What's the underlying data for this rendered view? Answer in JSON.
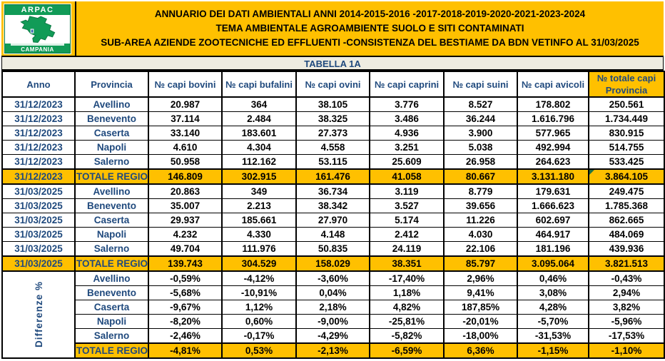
{
  "logo": {
    "org": "ARPAC",
    "region": "CAMPANIA"
  },
  "header": {
    "line1": "ANNUARIO DEI DATI AMBIENTALI ANNI 2014-2015-2016 -2017-2018-2019-2020-2021-2023-2024",
    "line2": "TEMA AMBIENTALE AGROAMBIENTE SUOLO E SITI CONTAMINATI",
    "line3": "SUB-AREA AZIENDE ZOOTECNICHE ED EFFLUENTI -CONSISTENZA DEL BESTIAME  DA BDN VETINFO AL 31/03/2025"
  },
  "table": {
    "caption": "TABELLA 1A",
    "columns": [
      "Anno",
      "Provincia",
      "№ capi bovini",
      "№ capi bufalini",
      "№ capi ovini",
      "№ capi caprini",
      "№ capi suini",
      "№ capi avicoli"
    ],
    "total_column_line1": "№ totale capi",
    "total_column_line2": "Provincia",
    "blocks": [
      {
        "anno": "31/12/2023",
        "rows": [
          {
            "provincia": "Avellino",
            "values": [
              "20.987",
              "364",
              "38.105",
              "3.776",
              "8.527",
              "178.802",
              "250.561"
            ]
          },
          {
            "provincia": "Benevento",
            "values": [
              "37.114",
              "2.484",
              "38.325",
              "3.486",
              "36.244",
              "1.616.796",
              "1.734.449"
            ]
          },
          {
            "provincia": "Caserta",
            "values": [
              "33.140",
              "183.601",
              "27.373",
              "4.936",
              "3.900",
              "577.965",
              "830.915"
            ]
          },
          {
            "provincia": "Napoli",
            "values": [
              "4.610",
              "4.304",
              "4.558",
              "3.251",
              "5.038",
              "492.994",
              "514.755"
            ]
          },
          {
            "provincia": "Salerno",
            "values": [
              "50.958",
              "112.162",
              "53.115",
              "25.609",
              "26.958",
              "264.623",
              "533.425"
            ]
          },
          {
            "provincia": "TOTALE REGIONE",
            "values": [
              "146.809",
              "302.915",
              "161.476",
              "41.058",
              "80.667",
              "3.131.180",
              "3.864.105"
            ],
            "is_total": true,
            "corner_mark_on_last": true
          }
        ]
      },
      {
        "anno": "31/03/2025",
        "rows": [
          {
            "provincia": "Avellino",
            "values": [
              "20.863",
              "349",
              "36.734",
              "3.119",
              "8.779",
              "179.631",
              "249.475"
            ]
          },
          {
            "provincia": "Benevento",
            "values": [
              "35.007",
              "2.213",
              "38.342",
              "3.527",
              "39.656",
              "1.666.623",
              "1.785.368"
            ]
          },
          {
            "provincia": "Caserta",
            "values": [
              "29.937",
              "185.661",
              "27.970",
              "5.174",
              "11.226",
              "602.697",
              "862.665"
            ]
          },
          {
            "provincia": "Napoli",
            "values": [
              "4.232",
              "4.330",
              "4.148",
              "2.412",
              "4.030",
              "464.917",
              "484.069"
            ]
          },
          {
            "provincia": "Salerno",
            "values": [
              "49.704",
              "111.976",
              "50.835",
              "24.119",
              "22.106",
              "181.196",
              "439.936"
            ]
          },
          {
            "provincia": "TOTALE REGIONE",
            "values": [
              "139.743",
              "304.529",
              "158.029",
              "38.351",
              "85.797",
              "3.095.064",
              "3.821.513"
            ],
            "is_total": true
          }
        ]
      },
      {
        "side_label": "Differenze %",
        "rows": [
          {
            "provincia": "Avellino",
            "values": [
              "-0,59%",
              "-4,12%",
              "-3,60%",
              "-17,40%",
              "2,96%",
              "0,46%",
              "-0,43%"
            ]
          },
          {
            "provincia": "Benevento",
            "values": [
              "-5,68%",
              "-10,91%",
              "0,04%",
              "1,18%",
              "9,41%",
              "3,08%",
              "2,94%"
            ]
          },
          {
            "provincia": "Caserta",
            "values": [
              "-9,67%",
              "1,12%",
              "2,18%",
              "4,82%",
              "187,85%",
              "4,28%",
              "3,82%"
            ]
          },
          {
            "provincia": "Napoli",
            "values": [
              "-8,20%",
              "0,60%",
              "-9,00%",
              "-25,81%",
              "-20,01%",
              "-5,70%",
              "-5,96%"
            ]
          },
          {
            "provincia": "Salerno",
            "values": [
              "-2,46%",
              "-0,17%",
              "-4,29%",
              "-5,82%",
              "-18,00%",
              "-31,53%",
              "-17,53%"
            ]
          },
          {
            "provincia": "TOTALE REGIONE",
            "values": [
              "-4,81%",
              "0,53%",
              "-2,13%",
              "-6,59%",
              "6,36%",
              "-1,15%",
              "-1,10%"
            ],
            "is_total": true
          }
        ]
      }
    ]
  },
  "colors": {
    "accent_orange": "#FFC000",
    "caption_beige": "#EEECE1",
    "navy_text": "#1F497D",
    "logo_green": "#119B57",
    "corner_mark_green": "#1E7145"
  }
}
